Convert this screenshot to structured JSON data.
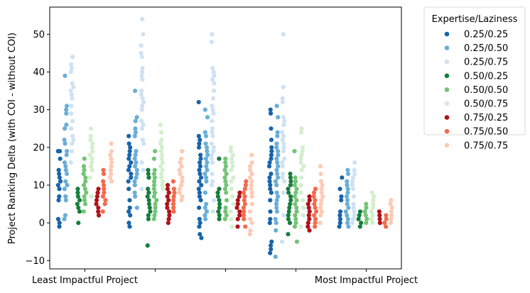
{
  "chart_data": {
    "type": "scatter",
    "subtype": "strip",
    "title": "",
    "xlabel": "",
    "ylabel": "Project Ranking Delta (with COI - without COI)",
    "ylim": [
      -12.2,
      57.2
    ],
    "yticks": [
      -10,
      0,
      10,
      20,
      30,
      40,
      50
    ],
    "categories": [
      "Least Impactful Project",
      "",
      "",
      "",
      "Most Impactful Project"
    ],
    "legend": {
      "title": "Expertise/Laziness",
      "placement": "outside-right"
    },
    "series": [
      {
        "name": "0.25/0.25",
        "color": "#1764ab",
        "values": [
          [
            -1,
            0,
            1,
            6,
            7,
            9,
            10,
            11,
            12,
            13,
            14,
            17,
            19,
            19
          ],
          [
            -1,
            0,
            2,
            3,
            4,
            6,
            9,
            11,
            12,
            13,
            14,
            15,
            16,
            17,
            18,
            19,
            20,
            21,
            23
          ],
          [
            -4,
            -3,
            -1,
            0,
            1,
            4,
            6,
            7,
            8,
            9,
            10,
            11,
            12,
            13,
            14,
            15,
            16,
            17,
            18,
            20,
            21,
            22,
            23,
            32
          ],
          [
            -8,
            -7,
            -6,
            -5,
            0,
            1,
            3,
            6,
            8,
            9,
            10,
            11,
            12,
            13,
            15,
            16,
            17,
            18,
            19,
            20,
            22,
            25,
            29,
            30
          ],
          [
            -1,
            0,
            1,
            2,
            3,
            6,
            7,
            9,
            12
          ]
        ]
      },
      {
        "name": "0.25/0.50",
        "color": "#6aaed6",
        "values": [
          [
            1,
            2,
            6,
            7,
            9,
            10,
            11,
            13,
            14,
            15,
            16,
            18,
            19,
            21,
            22,
            25,
            26,
            29,
            30,
            31,
            39
          ],
          [
            4,
            7,
            8,
            10,
            11,
            12,
            13,
            14,
            15,
            16,
            17,
            18,
            19,
            23,
            24,
            25,
            27,
            28,
            35
          ],
          [
            1,
            2,
            3,
            4,
            5,
            8,
            11,
            12,
            13,
            14,
            15,
            16,
            17,
            18,
            19,
            20,
            21,
            23,
            24,
            28,
            30
          ],
          [
            -9,
            -2,
            0,
            1,
            3,
            4,
            5,
            6,
            7,
            8,
            10,
            11,
            12,
            13,
            14,
            15,
            16,
            17,
            18,
            19,
            20,
            21,
            23,
            24,
            28,
            31
          ],
          [
            -1,
            0,
            1,
            2,
            3,
            4,
            5,
            6,
            7,
            8,
            9,
            10,
            11,
            13,
            14
          ]
        ]
      },
      {
        "name": "0.25/0.75",
        "color": "#cfe1f2",
        "values": [
          [
            16,
            19,
            21,
            22,
            23,
            25,
            27,
            29,
            31,
            33,
            34,
            35,
            36,
            37,
            40,
            41,
            42,
            44
          ],
          [
            9,
            14,
            16,
            21,
            22,
            25,
            26,
            27,
            30,
            31,
            32,
            33,
            34,
            35,
            38,
            39,
            40,
            41,
            44,
            45,
            47,
            50,
            54
          ],
          [
            3,
            6,
            10,
            11,
            13,
            16,
            17,
            18,
            19,
            20,
            21,
            23,
            24,
            25,
            27,
            29,
            30,
            31,
            33,
            35,
            37,
            38,
            39,
            40,
            41,
            48,
            50
          ],
          [
            -5,
            2,
            8,
            11,
            12,
            13,
            15,
            16,
            17,
            19,
            20,
            21,
            22,
            23,
            24,
            26,
            27,
            28,
            32,
            33,
            36,
            50
          ],
          [
            0,
            1,
            2,
            3,
            4,
            5,
            7,
            9,
            10,
            11,
            12,
            13,
            14,
            16
          ]
        ]
      },
      {
        "name": "0.50/0.25",
        "color": "#157f3b",
        "values": [
          [
            0,
            3,
            4,
            5,
            6,
            7,
            8,
            9
          ],
          [
            -6,
            1,
            2,
            3,
            4,
            5,
            6,
            7,
            8,
            9,
            12,
            13,
            14
          ],
          [
            1,
            2,
            3,
            4,
            5,
            6,
            7,
            8,
            9,
            17
          ],
          [
            -3,
            0,
            1,
            2,
            3,
            4,
            5,
            6,
            7,
            8,
            9,
            10,
            11,
            12,
            13
          ],
          [
            -1,
            0,
            1,
            2,
            3
          ]
        ]
      },
      {
        "name": "0.50/0.50",
        "color": "#73c476",
        "values": [
          [
            3,
            5,
            6,
            7,
            8,
            9,
            10,
            11,
            12,
            13,
            14,
            15,
            17
          ],
          [
            1,
            2,
            3,
            4,
            5,
            6,
            7,
            8,
            9,
            10,
            11,
            12,
            13,
            14,
            17,
            19
          ],
          [
            1,
            2,
            3,
            4,
            6,
            8,
            9,
            10,
            11,
            12,
            13,
            14,
            15,
            16,
            17
          ],
          [
            -5,
            -1,
            0,
            1,
            2,
            3,
            4,
            5,
            6,
            7,
            8,
            9,
            10,
            11,
            12,
            19
          ],
          [
            0,
            1,
            2,
            3,
            4,
            5
          ]
        ]
      },
      {
        "name": "0.50/0.75",
        "color": "#d3eecd",
        "values": [
          [
            7,
            12,
            14,
            15,
            16,
            17,
            18,
            19,
            20,
            21,
            22,
            23,
            25
          ],
          [
            9,
            10,
            11,
            12,
            13,
            14,
            15,
            16,
            17,
            18,
            19,
            20,
            21,
            22,
            24,
            26
          ],
          [
            -1,
            1,
            3,
            5,
            7,
            9,
            11,
            12,
            14,
            15,
            16,
            17,
            18,
            19,
            20
          ],
          [
            -1,
            2,
            4,
            6,
            8,
            10,
            12,
            14,
            15,
            16,
            17,
            18,
            19,
            20,
            24,
            25
          ],
          [
            0,
            1,
            2,
            3,
            4,
            5,
            6,
            7,
            8
          ]
        ]
      },
      {
        "name": "0.75/0.25",
        "color": "#b11218",
        "values": [
          [
            2,
            3,
            4,
            5,
            6,
            7,
            8,
            9
          ],
          [
            0,
            1,
            2,
            3,
            4,
            5,
            6,
            7,
            8,
            9,
            10
          ],
          [
            -1,
            1,
            2,
            3,
            4,
            5,
            6,
            7,
            8
          ],
          [
            -2,
            -1,
            0,
            1,
            2,
            3,
            4,
            5,
            6,
            7
          ],
          [
            0,
            1,
            2,
            3
          ]
        ]
      },
      {
        "name": "0.75/0.50",
        "color": "#f4694a",
        "values": [
          [
            3,
            5,
            6,
            7,
            8,
            9,
            10,
            11,
            13,
            14
          ],
          [
            3,
            4,
            5,
            6,
            7,
            8,
            9,
            11
          ],
          [
            -1,
            1,
            2,
            3,
            4,
            5,
            6,
            7,
            8,
            9,
            10,
            11
          ],
          [
            -1,
            0,
            1,
            2,
            3,
            4,
            5,
            6,
            7,
            8,
            9
          ],
          [
            -1,
            0,
            1,
            2
          ]
        ]
      },
      {
        "name": "0.75/0.75",
        "color": "#fdcab5",
        "values": [
          [
            11,
            12,
            13,
            14,
            15,
            16,
            17,
            18,
            19,
            21
          ],
          [
            6,
            7,
            8,
            9,
            10,
            11,
            12,
            13,
            14,
            15,
            16,
            17,
            19
          ],
          [
            -3,
            -2,
            0,
            1,
            3,
            5,
            7,
            8,
            9,
            10,
            11,
            12,
            13,
            14,
            15,
            16,
            18
          ],
          [
            0,
            2,
            3,
            4,
            5,
            6,
            7,
            8,
            9,
            10,
            11,
            13,
            15
          ],
          [
            0,
            1,
            2,
            3,
            4,
            5,
            6
          ]
        ]
      }
    ]
  }
}
